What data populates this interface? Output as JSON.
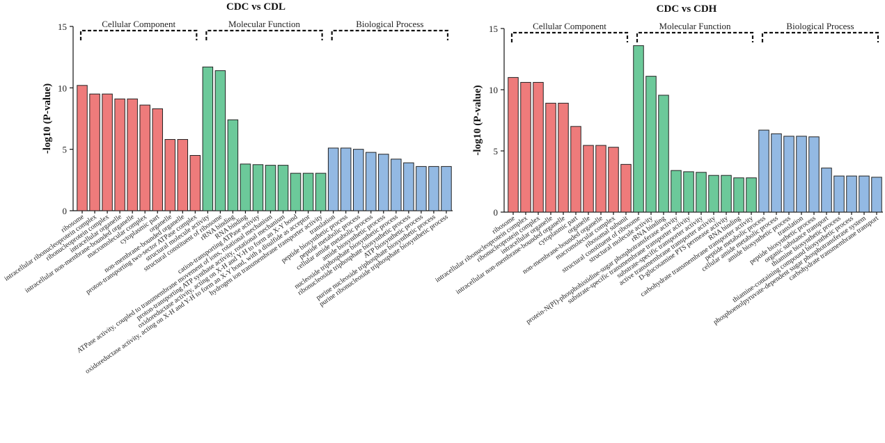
{
  "colors": {
    "cc": "#ee7b7b",
    "mf": "#6cc99a",
    "bp": "#93b9e3"
  },
  "chart_data": [
    {
      "type": "bar",
      "title": "CDC vs CDL",
      "ylabel": "-log10 (P-value)",
      "ylim": [
        0,
        15
      ],
      "yticks": [
        0,
        5,
        10,
        15
      ],
      "groups": [
        {
          "name": "Cellular Component",
          "key": "cc",
          "start": 0,
          "end": 9
        },
        {
          "name": "Molecular Function",
          "key": "mf",
          "start": 10,
          "end": 19
        },
        {
          "name": "Biological Process",
          "key": "bp",
          "start": 20,
          "end": 29
        }
      ],
      "categories": [
        "ribosome",
        "intracellular ribonucleoprotein complex",
        "ribonucleoprotein complex",
        "intracellular organelle",
        "intracellular non-membrane-bounded organelle",
        "macromolecular complex",
        "cytoplasmic part",
        "organelle",
        "non-membrane-bounded organelle",
        "proton-transporting two-sector ATPase complex",
        "structural molecule activity",
        "structural constituent of ribosome",
        "rRNA binding",
        "RNA binding",
        "cation-transporting ATPase activity",
        "ATPase activity, coupled to transmembrane movement of ions, rotational mechanism",
        "proton-transporting ATP synthase activity, rotational mechanism",
        "oxidoreductase activity, acting on X-H and Y-H to form an X-Y bond",
        "oxidoreductase activity, acting on X-H and Y-H to form an X-Y bond, with a disulfide as acceptor",
        "hydrogen ion transmembrane transporter activity",
        "translation",
        "peptide biosynthetic process",
        "peptide metabolic process",
        "cellular amide metabolic process",
        "amide biosynthetic process",
        "nucleoside triphosphate biosynthetic process",
        "ribonucleoside triphosphate biosynthetic process",
        "ATP biosynthetic process",
        "purine nucleoside triphosphate biosynthetic process",
        "purine ribonucleoside triphosphate biosynthetic process"
      ],
      "values": [
        10.2,
        9.5,
        9.5,
        9.1,
        9.1,
        8.6,
        8.3,
        5.8,
        5.8,
        4.5,
        11.7,
        11.4,
        7.4,
        3.8,
        3.75,
        3.7,
        3.7,
        3.05,
        3.05,
        3.05,
        5.1,
        5.1,
        5.0,
        4.75,
        4.6,
        4.2,
        3.9,
        3.6,
        3.6,
        3.6
      ]
    },
    {
      "type": "bar",
      "title": "CDC vs CDH",
      "ylabel": "-log10 (P-value)",
      "ylim": [
        0,
        15
      ],
      "yticks": [
        0,
        5,
        10,
        15
      ],
      "groups": [
        {
          "name": "Cellular Component",
          "key": "cc",
          "start": 0,
          "end": 9
        },
        {
          "name": "Molecular Function",
          "key": "mf",
          "start": 10,
          "end": 19
        },
        {
          "name": "Biological Process",
          "key": "bp",
          "start": 20,
          "end": 29
        }
      ],
      "categories": [
        "ribosome",
        "intracellular ribonucleoprotein complex",
        "ribonucleoprotein complex",
        "intracellular organelle",
        "intracellular non-membrane-bounded organelle",
        "cytoplasmic part",
        "organelle",
        "non-membrane-bounded organelle",
        "macromolecular complex",
        "ribosomal subunit",
        "structural constituent of ribosome",
        "structural molecule activity",
        "rRNA binding",
        "protein-N(PI)-phosphohistidine-sugar phosphotransferase activity",
        "substrate-specific transmembrane transporter activity",
        "substrate-specific transporter activity",
        "active transmembrane transporter activity",
        "D-glucosamine PTS permease activity",
        "RNA binding",
        "carbohydrate transmembrane transporter activity",
        "peptide metabolic process",
        "cellular amide metabolic process",
        "amide biosynthetic process",
        "translation",
        "peptide biosynthetic process",
        "organic substance transport",
        "thiamine biosynthetic process",
        "thiamine-containing compound biosynthetic process",
        "phosphoenolpyruvate-dependent sugar phosphotransferase system",
        "carbohydrate transmembrane transport"
      ],
      "values": [
        11.0,
        10.6,
        10.6,
        8.9,
        8.9,
        7.0,
        5.45,
        5.45,
        5.3,
        3.9,
        13.6,
        11.1,
        9.55,
        3.4,
        3.3,
        3.25,
        3.0,
        3.0,
        2.8,
        2.8,
        6.7,
        6.4,
        6.2,
        6.2,
        6.15,
        3.6,
        2.95,
        2.95,
        2.95,
        2.85
      ]
    }
  ]
}
